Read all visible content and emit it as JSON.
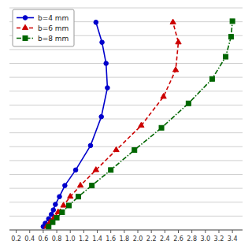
{
  "chart_data": {
    "type": "line",
    "series": [
      {
        "name": "b=4 mm",
        "color": "#0000cc",
        "marker": "circle",
        "line_style": "solid",
        "x": [
          0.6,
          0.63,
          0.68,
          0.72,
          0.75,
          0.78,
          0.84,
          0.92,
          1.08,
          1.3,
          1.46,
          1.55,
          1.53,
          1.47,
          1.38
        ],
        "values": [
          0.985,
          0.97,
          0.95,
          0.93,
          0.91,
          0.885,
          0.85,
          0.8,
          0.73,
          0.62,
          0.49,
          0.36,
          0.25,
          0.155,
          0.065
        ]
      },
      {
        "name": "b=6 mm",
        "color": "#cc0000",
        "marker": "triangle",
        "line_style": "dashed",
        "x": [
          0.65,
          0.7,
          0.76,
          0.82,
          0.9,
          1.0,
          1.15,
          1.38,
          1.68,
          2.05,
          2.38,
          2.56,
          2.6,
          2.52
        ],
        "values": [
          0.985,
          0.965,
          0.945,
          0.92,
          0.89,
          0.85,
          0.8,
          0.73,
          0.64,
          0.53,
          0.4,
          0.28,
          0.155,
          0.065
        ]
      },
      {
        "name": "b=8 mm",
        "color": "#006600",
        "marker": "square",
        "line_style": "dash-dot",
        "x": [
          0.68,
          0.74,
          0.8,
          0.88,
          0.98,
          1.12,
          1.32,
          1.6,
          1.95,
          2.35,
          2.75,
          3.1,
          3.3,
          3.38,
          3.4
        ],
        "values": [
          0.985,
          0.965,
          0.945,
          0.92,
          0.89,
          0.85,
          0.8,
          0.73,
          0.64,
          0.54,
          0.43,
          0.32,
          0.22,
          0.13,
          0.06
        ]
      }
    ],
    "xlim": [
      0.1,
      3.55
    ],
    "xticks": [
      0.2,
      0.4,
      0.6,
      0.8,
      {
        "value": 1.0,
        "label": "1.0"
      },
      1.2,
      1.4,
      1.6,
      1.8,
      {
        "value": 2.0,
        "label": "2.0"
      },
      2.2,
      2.4,
      2.6,
      2.8,
      {
        "value": 3.0,
        "label": "3.0"
      },
      3.2,
      3.4
    ],
    "ylim": [
      1.0,
      0.0
    ],
    "yticks": [
      0,
      0.0625,
      0.125,
      0.1875,
      0.25,
      0.3125,
      0.375,
      0.4375,
      0.5,
      0.5625,
      0.625,
      0.6875,
      0.75,
      0.8125,
      0.875,
      0.9375,
      1
    ],
    "grid": true,
    "legend": "top-left",
    "tick_labels": "x"
  }
}
